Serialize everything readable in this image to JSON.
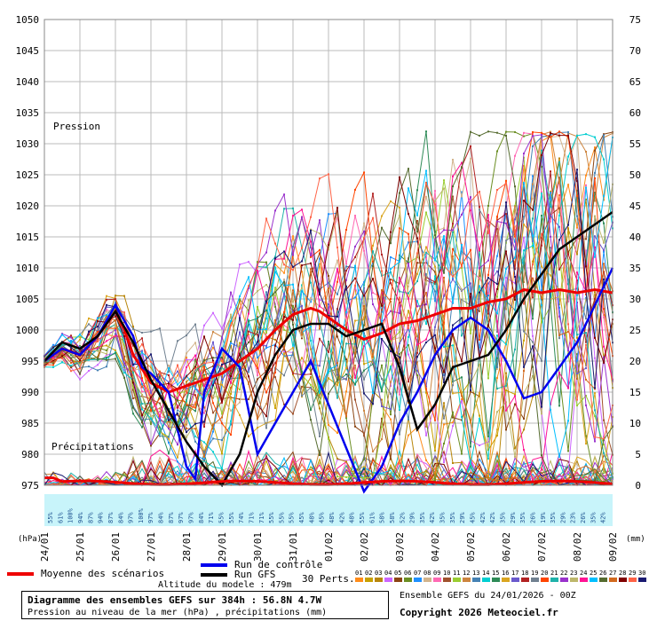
{
  "chart_data": {
    "type": "line",
    "left_axis": {
      "unit_label": "(hPa)",
      "ticks": [
        975,
        980,
        985,
        990,
        995,
        1000,
        1005,
        1010,
        1015,
        1020,
        1025,
        1030,
        1035,
        1040,
        1045,
        1050
      ],
      "range": [
        975,
        1050
      ]
    },
    "right_axis": {
      "unit_label": "(mm)",
      "ticks": [
        0,
        5,
        10,
        15,
        20,
        25,
        30,
        35,
        40,
        45,
        50,
        55,
        60,
        65,
        70,
        75
      ],
      "range": [
        0,
        75
      ]
    },
    "x_tick_labels": [
      "24/01",
      "25/01",
      "26/01",
      "27/01",
      "28/01",
      "29/01",
      "30/01",
      "31/01",
      "01/02",
      "02/02",
      "03/02",
      "04/02",
      "05/02",
      "06/02",
      "07/02",
      "08/02",
      "09/02"
    ],
    "x_hours": [
      0,
      384
    ],
    "annotations": {
      "pressure": "Pression",
      "precip": "Précipitations"
    },
    "probabilities": [
      "55%",
      "61%",
      "100%",
      "94%",
      "87%",
      "94%",
      "87%",
      "84%",
      "97%",
      "100%",
      "97%",
      "84%",
      "87%",
      "97%",
      "97%",
      "84%",
      "71%",
      "55%",
      "55%",
      "74%",
      "71%",
      "71%",
      "55%",
      "55%",
      "55%",
      "45%",
      "48%",
      "45%",
      "48%",
      "42%",
      "48%",
      "55%",
      "61%",
      "58%",
      "58%",
      "52%",
      "29%",
      "35%",
      "42%",
      "35%",
      "35%",
      "29%",
      "45%",
      "42%",
      "42%",
      "35%",
      "29%",
      "35%",
      "26%",
      "19%",
      "35%",
      "29%",
      "23%",
      "26%",
      "35%",
      "42%"
    ],
    "series": [
      {
        "name": "Moyenne des scénarios",
        "color": "#ee0000",
        "x": [
          0,
          12,
          24,
          36,
          42,
          48,
          54,
          60,
          72,
          84,
          90,
          96,
          108,
          120,
          132,
          144,
          156,
          168,
          180,
          186,
          192,
          204,
          216,
          228,
          240,
          252,
          264,
          276,
          288,
          300,
          312,
          324,
          336,
          348,
          360,
          372,
          384
        ],
        "values": [
          995,
          997,
          996,
          999,
          1001,
          1003,
          1000,
          996,
          991.5,
          990,
          990.5,
          991,
          992,
          993,
          995,
          997,
          1000,
          1002.5,
          1003.5,
          1003,
          1002,
          1000,
          998.5,
          999.5,
          1001,
          1001.5,
          1002.5,
          1003.5,
          1003.5,
          1004.5,
          1005,
          1006.5,
          1006,
          1006.5,
          1006,
          1006.5,
          1006
        ]
      },
      {
        "name": "Run de contrôle",
        "color": "#0000ee",
        "x": [
          0,
          12,
          24,
          36,
          48,
          60,
          66,
          72,
          84,
          96,
          102,
          108,
          120,
          132,
          144,
          156,
          168,
          180,
          192,
          204,
          216,
          228,
          240,
          252,
          264,
          276,
          288,
          300,
          312,
          324,
          336,
          348,
          360,
          372,
          384
        ],
        "values": [
          995,
          997,
          996,
          999,
          1004,
          999,
          994,
          993,
          990,
          978,
          976,
          990,
          997,
          994,
          980,
          985,
          990,
          995,
          988,
          981,
          974,
          978,
          985,
          990,
          996,
          1000,
          1002,
          1000,
          995,
          989,
          990,
          994,
          998,
          1004,
          1010
        ]
      },
      {
        "name": "Run GFS",
        "color": "#000000",
        "x": [
          0,
          12,
          24,
          36,
          48,
          60,
          72,
          84,
          96,
          108,
          120,
          132,
          144,
          156,
          168,
          180,
          192,
          204,
          216,
          228,
          240,
          252,
          264,
          276,
          288,
          300,
          312,
          324,
          336,
          348,
          360,
          372,
          384
        ],
        "values": [
          995,
          998,
          997,
          999,
          1003,
          998,
          992,
          987,
          982,
          978,
          975,
          980,
          990,
          996,
          1000,
          1001,
          1001,
          999,
          1000,
          1001,
          994,
          984,
          988,
          994,
          995,
          996,
          1000,
          1005,
          1009,
          1013,
          1015,
          1017,
          1019
        ]
      }
    ]
  },
  "legend": {
    "mean": "Moyenne des scénarios",
    "control": "Run de contrôle",
    "gfs": "Run GFS",
    "perts": "30 Perts.",
    "pert_numbers": [
      "01",
      "02",
      "03",
      "04",
      "05",
      "06",
      "07",
      "08",
      "09",
      "10",
      "11",
      "12",
      "13",
      "14",
      "15",
      "16",
      "17",
      "18",
      "19",
      "20",
      "21",
      "22",
      "23",
      "24",
      "25",
      "26",
      "27",
      "28",
      "29",
      "30"
    ],
    "pert_colors": [
      "#ff8c1a",
      "#c8a000",
      "#b8860b",
      "#cc66ff",
      "#8b4513",
      "#6b8e23",
      "#1e90ff",
      "#d2b48c",
      "#ff69b4",
      "#a0522d",
      "#9acd32",
      "#cd853f",
      "#4682b4",
      "#00ced1",
      "#2e8b57",
      "#daa520",
      "#6a5acd",
      "#b22222",
      "#708090",
      "#ff4500",
      "#20b2aa",
      "#9932cc",
      "#bdb76b",
      "#ff1493",
      "#00bfff",
      "#556b2f",
      "#d2691e",
      "#800000",
      "#ff6347",
      "#191970"
    ]
  },
  "footer": {
    "altitude": "Altitude du modele : 479m",
    "title": "Diagramme des ensembles GEFS sur 384h : 56.8N 4.7W",
    "subtitle": "Pression au niveau de la mer (hPa) , précipitations (mm)",
    "ensemble_date": "Ensemble GEFS du 24/01/2026 - 00Z",
    "copyright": "Copyright 2026 Meteociel.fr"
  }
}
